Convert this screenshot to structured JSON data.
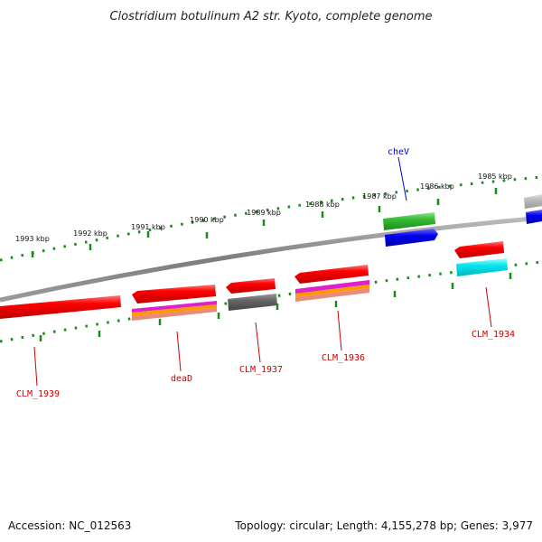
{
  "title": "Clostridium botulinum A2 str. Kyoto, complete genome",
  "footer": {
    "accession": "Accession: NC_012563",
    "summary": "Topology: circular; Length: 4,155,278 bp; Genes: 3,977"
  },
  "kbp_ticks": [
    "1993 kbp",
    "1992 kbp",
    "1991 kbp",
    "1990 kbp",
    "1989 kbp",
    "1988 kbp",
    "1987 kbp",
    "1986 kbp",
    "1985 kbp"
  ],
  "gene_labels": [
    {
      "name": "cheV",
      "color": "#0000cc"
    },
    {
      "name": "CLM_1939",
      "color": "#cc0000"
    },
    {
      "name": "deaD",
      "color": "#cc0000"
    },
    {
      "name": "CLM_1937",
      "color": "#cc0000"
    },
    {
      "name": "CLM_1936",
      "color": "#cc0000"
    },
    {
      "name": "CLM_1934",
      "color": "#cc0000"
    }
  ],
  "colors": {
    "tick": "#1a8a1a",
    "backbone": "#8a8a8a",
    "red_gene": "#ee0000",
    "green_gene": "#33bb33",
    "blue_gene": "#0000dd",
    "cyan_gene": "#00e5ee",
    "grey_gene": "#666666",
    "light_grey_gene": "#bbbbbb"
  }
}
